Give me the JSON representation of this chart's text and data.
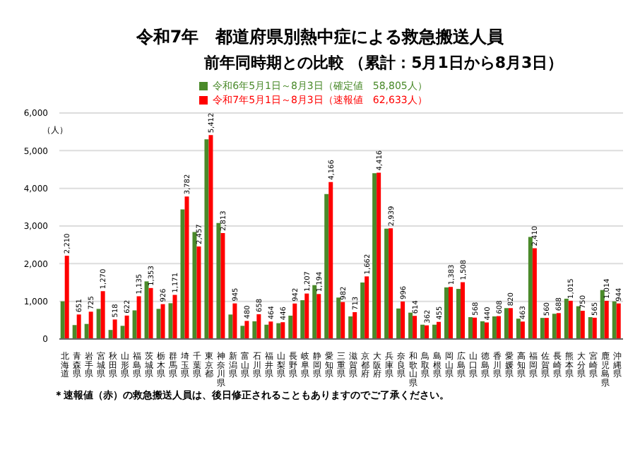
{
  "chart_data": {
    "type": "bar",
    "title": "令和7年　都道府県別熱中症による救急搬送人員",
    "subtitle": "前年同時期との比較 （累計：5月1日から8月3日）",
    "ylabel": "（人）",
    "categories": [
      "北海道",
      "青森県",
      "岩手県",
      "宮城県",
      "秋田県",
      "山形県",
      "福島県",
      "茨城県",
      "栃木県",
      "群馬県",
      "埼玉県",
      "千葉県",
      "東京都",
      "神奈川県",
      "新潟県",
      "富山県",
      "石川県",
      "福井県",
      "山梨県",
      "長野県",
      "岐阜県",
      "静岡県",
      "愛知県",
      "三重県",
      "滋賀県",
      "京都府",
      "大阪府",
      "兵庫県",
      "奈良県",
      "和歌山県",
      "鳥取県",
      "島根県",
      "岡山県",
      "広島県",
      "山口県",
      "徳島県",
      "香川県",
      "愛媛県",
      "高知県",
      "福岡県",
      "佐賀県",
      "長崎県",
      "熊本県",
      "大分県",
      "宮崎県",
      "鹿児島県",
      "沖縄県"
    ],
    "series": [
      {
        "name": "令和6年5月1日～8月3日（確定値　58,805人）",
        "color": "#4a8a2a",
        "values": [
          1000,
          370,
          400,
          800,
          240,
          350,
          760,
          1530,
          800,
          950,
          3440,
          2840,
          5300,
          3080,
          650,
          350,
          470,
          380,
          420,
          620,
          1030,
          1430,
          3850,
          1100,
          600,
          1500,
          4400,
          2930,
          810,
          700,
          380,
          380,
          1370,
          1330,
          580,
          470,
          600,
          820,
          540,
          2710,
          560,
          670,
          1070,
          870,
          580,
          1300,
          1000
        ]
      },
      {
        "name": "令和7年5月1日～8月3日（速報値　62,633人）",
        "color": "#ff0000",
        "values": [
          2210,
          651,
          725,
          1270,
          518,
          622,
          1135,
          1353,
          926,
          1171,
          3782,
          2457,
          5412,
          2813,
          945,
          480,
          658,
          464,
          446,
          942,
          1207,
          1194,
          4166,
          982,
          713,
          1662,
          4416,
          2939,
          996,
          614,
          362,
          455,
          1383,
          1508,
          568,
          440,
          608,
          820,
          463,
          2410,
          560,
          688,
          1015,
          750,
          565,
          1014,
          944
        ],
        "value_labels": [
          "2,210",
          "651",
          "725",
          "1,270",
          "518",
          "622",
          "1,135",
          "1,353",
          "926",
          "1,171",
          "3,782",
          "2,457",
          "5,412",
          "2,813",
          "945",
          "480",
          "658",
          "464",
          "446",
          "942",
          "1,207",
          "1,194",
          "4,166",
          "982",
          "713",
          "1,662",
          "4,416",
          "2,939",
          "996",
          "614",
          "362",
          "455",
          "1,383",
          "1,508",
          "568",
          "440",
          "608",
          "820",
          "463",
          "2,410",
          "560",
          "688",
          "1,015",
          "750",
          "565",
          "1,014",
          "944"
        ]
      }
    ],
    "ylim": [
      0,
      6000
    ],
    "yticks": [
      0,
      {
        "value": 1000,
        "label": "1,000"
      },
      {
        "value": 2000,
        "label": "2,000"
      },
      {
        "value": 3000,
        "label": "3,000"
      },
      {
        "value": 4000,
        "label": "4,000"
      },
      {
        "value": 5000,
        "label": "5,000"
      },
      {
        "value": 6000,
        "label": "6,000"
      }
    ],
    "grid": "y",
    "legend": "top",
    "annotations": [
      "＊速報値（赤）の救急搬送人員は、後日修正されることもありますのでご了承ください。"
    ]
  }
}
